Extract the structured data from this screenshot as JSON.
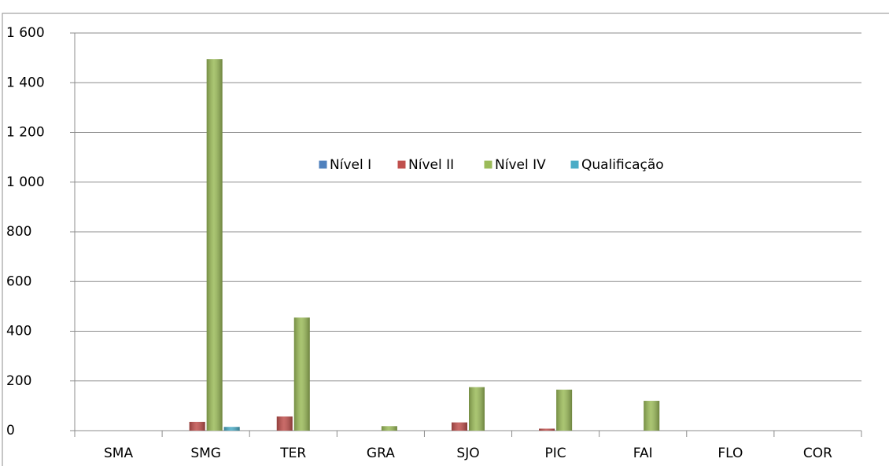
{
  "chart_data": {
    "type": "bar",
    "categories": [
      "SMA",
      "SMG",
      "TER",
      "GRA",
      "SJO",
      "PIC",
      "FAI",
      "FLO",
      "COR"
    ],
    "series": [
      {
        "name": "Nível I",
        "color": "#4f81bd",
        "values": [
          0,
          0,
          0,
          0,
          0,
          0,
          0,
          0,
          0
        ]
      },
      {
        "name": "Nível II",
        "color": "#c0504d",
        "values": [
          0,
          35,
          57,
          0,
          33,
          8,
          0,
          0,
          0
        ]
      },
      {
        "name": "Nível IV",
        "color": "#9bbb59",
        "values": [
          0,
          1495,
          455,
          18,
          175,
          165,
          120,
          0,
          0
        ]
      },
      {
        "name": "Qualificação",
        "color": "#4bacc6",
        "values": [
          0,
          15,
          0,
          0,
          0,
          0,
          0,
          0,
          0
        ]
      }
    ],
    "ylim": [
      0,
      1600
    ],
    "yticks": [
      0,
      200,
      400,
      600,
      800,
      {
        "value": 1000,
        "label": "1 000"
      },
      {
        "value": 1200,
        "label": "1 200"
      },
      {
        "value": 1400,
        "label": "1 400"
      },
      {
        "value": 1600,
        "label": "1 600"
      }
    ],
    "grid": true,
    "legend": "center"
  }
}
